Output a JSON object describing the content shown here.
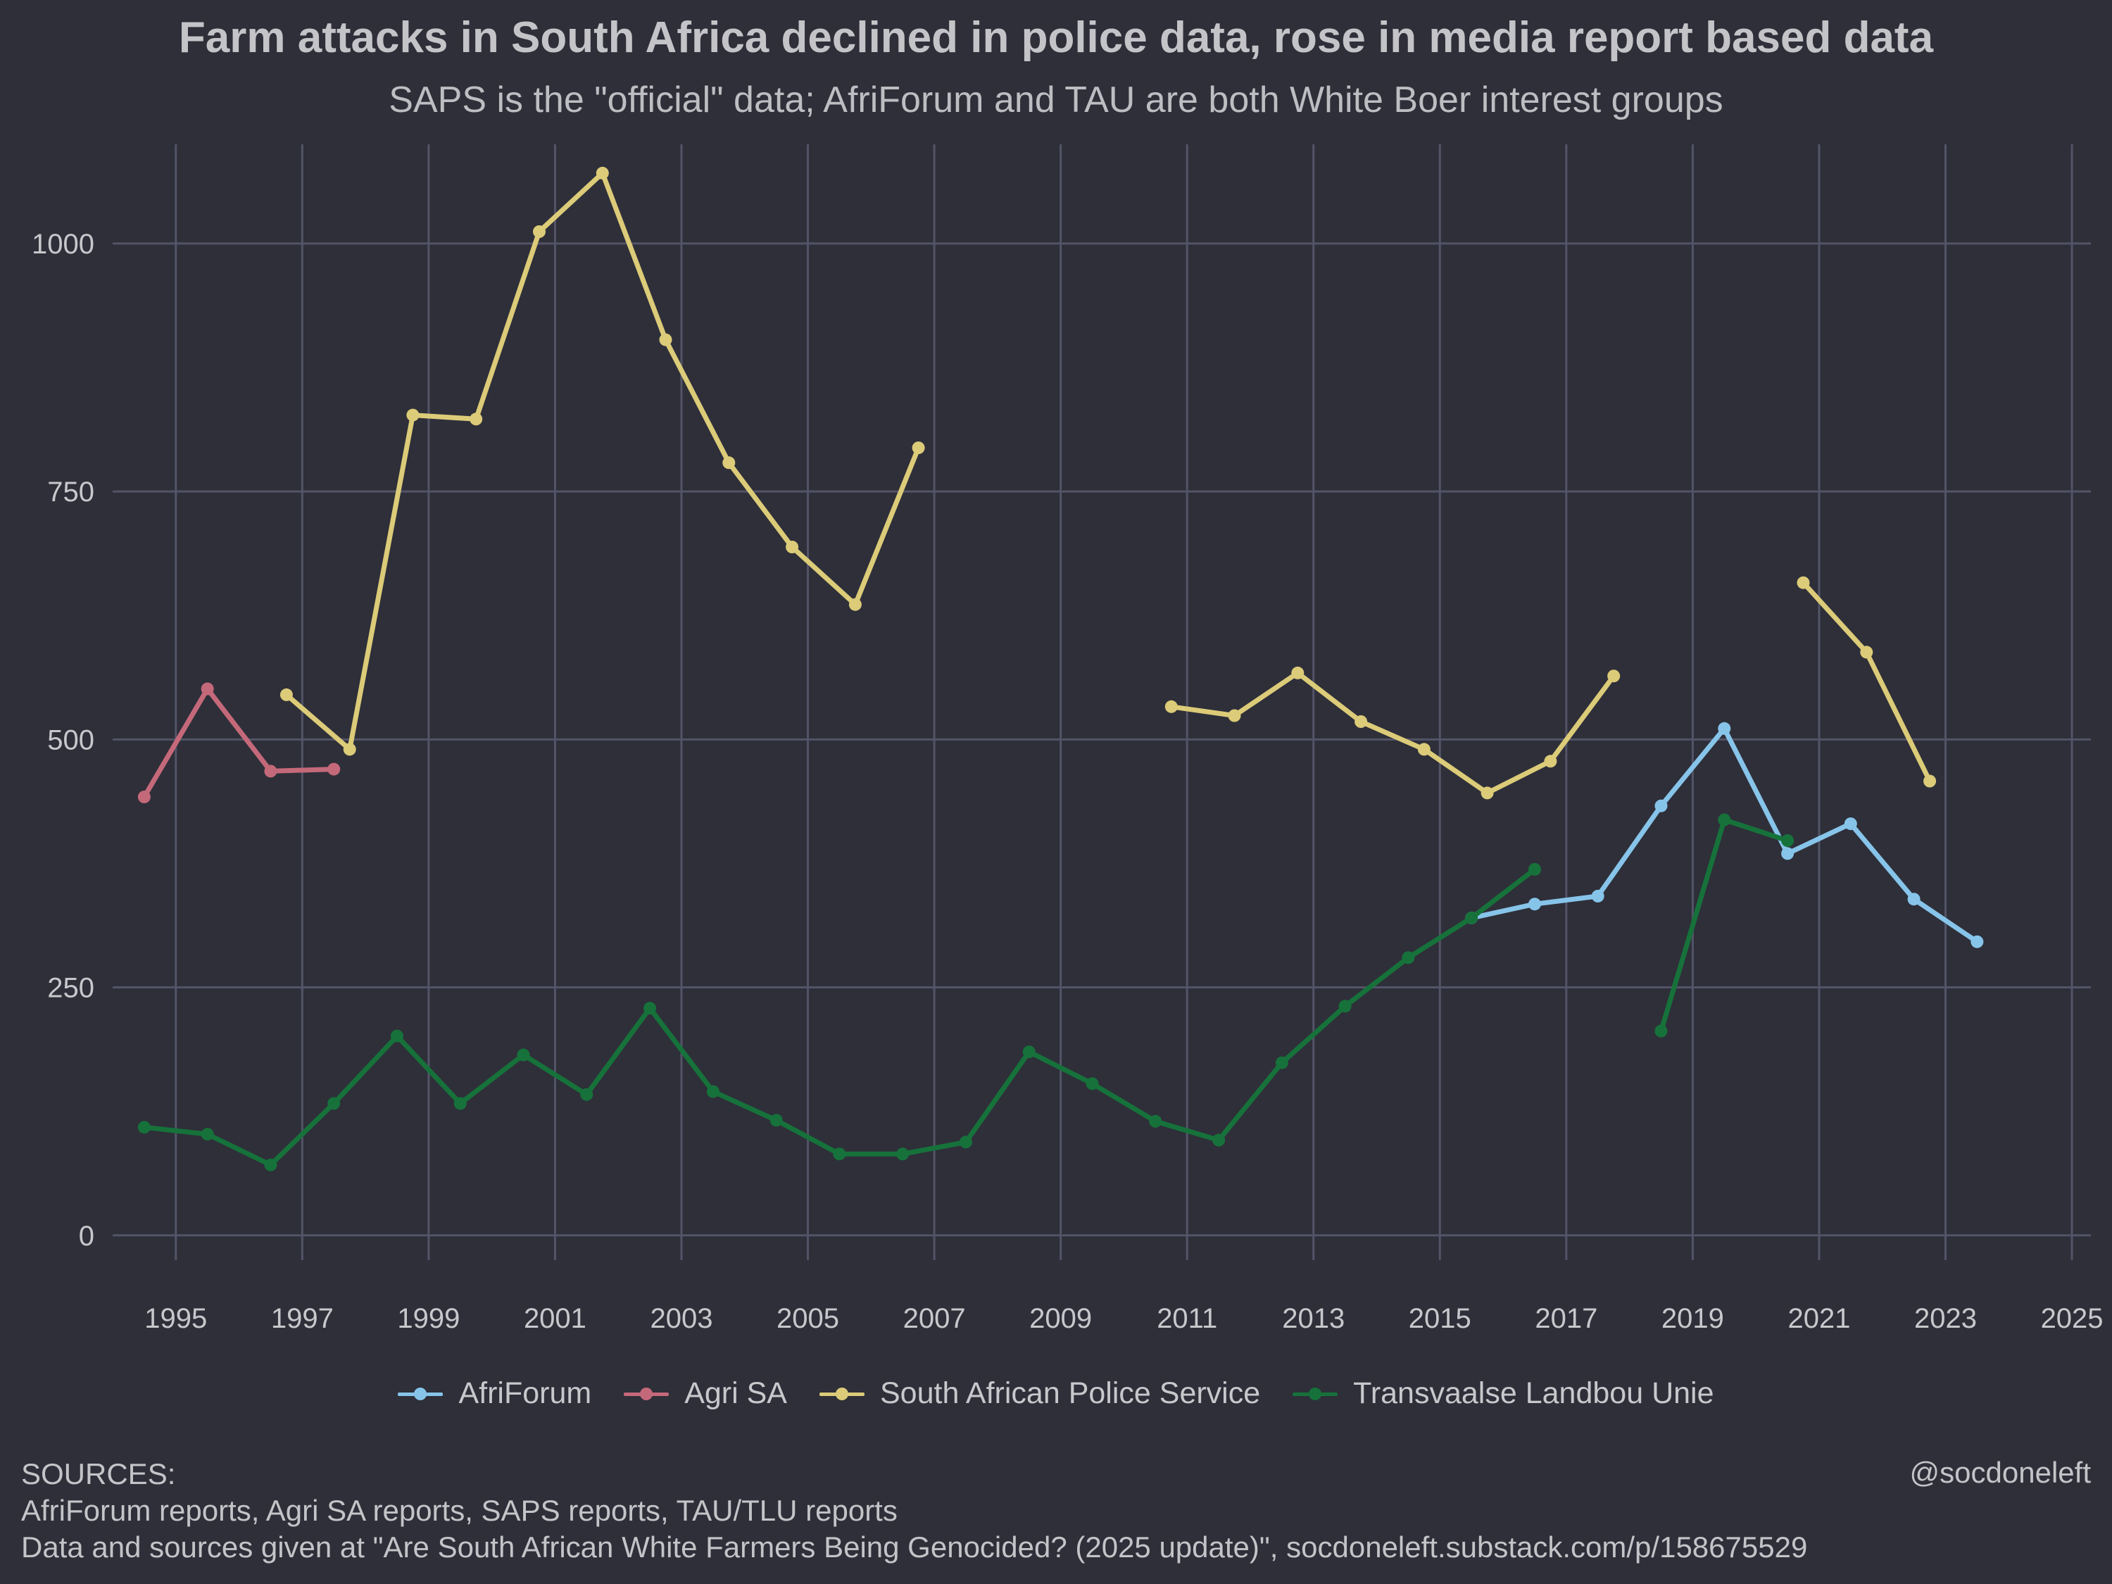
{
  "chart_data": {
    "type": "line",
    "title": "Farm attacks in South Africa declined in police data, rose in media report based data",
    "subtitle": "SAPS is the \"official\" data; AfriForum and TAU are both White Boer interest groups",
    "xlabel": "",
    "ylabel": "",
    "xlim": [
      1994,
      2025.3
    ],
    "ylim": [
      -25,
      1100
    ],
    "x_ticks": [
      1995,
      1997,
      1999,
      2001,
      2003,
      2005,
      2007,
      2009,
      2011,
      2013,
      2015,
      2017,
      2019,
      2021,
      2023,
      2025
    ],
    "y_ticks": [
      0,
      250,
      500,
      750,
      1000
    ],
    "grid": true,
    "legend_position": "bottom",
    "series": [
      {
        "name": "AfriForum",
        "color": "#87c4ea",
        "segments": [
          [
            [
              2015.5,
              320
            ],
            [
              2016.5,
              334
            ],
            [
              2017.5,
              342
            ],
            [
              2018.5,
              433
            ],
            [
              2019.5,
              511
            ],
            [
              2020.5,
              385
            ],
            [
              2021.5,
              415
            ],
            [
              2022.5,
              339
            ],
            [
              2023.5,
              296
            ]
          ]
        ]
      },
      {
        "name": "Agri SA",
        "color": "#c4697a",
        "segments": [
          [
            [
              1994.5,
              442
            ],
            [
              1995.5,
              551
            ],
            [
              1996.5,
              468
            ],
            [
              1997.5,
              470
            ]
          ]
        ]
      },
      {
        "name": "South African Police Service",
        "color": "#dccb78",
        "segments": [
          [
            [
              1996.75,
              545
            ],
            [
              1997.75,
              490
            ],
            [
              1998.75,
              827
            ],
            [
              1999.75,
              823
            ],
            [
              2000.75,
              1012
            ],
            [
              2001.75,
              1071
            ],
            [
              2002.75,
              903
            ],
            [
              2003.75,
              779
            ],
            [
              2004.75,
              694
            ],
            [
              2005.75,
              636
            ],
            [
              2006.75,
              794
            ]
          ],
          [
            [
              2010.75,
              533
            ],
            [
              2011.75,
              524
            ],
            [
              2012.75,
              567
            ],
            [
              2013.75,
              518
            ],
            [
              2014.75,
              490
            ],
            [
              2015.75,
              446
            ],
            [
              2016.75,
              478
            ],
            [
              2017.75,
              564
            ]
          ],
          [
            [
              2020.75,
              658
            ],
            [
              2021.75,
              588
            ],
            [
              2022.75,
              458
            ]
          ]
        ]
      },
      {
        "name": "Transvaalse Landbou Unie",
        "color": "#16723a",
        "segments": [
          [
            [
              1994.5,
              109
            ],
            [
              1995.5,
              102
            ],
            [
              1996.5,
              71
            ],
            [
              1997.5,
              133
            ],
            [
              1998.5,
              201
            ],
            [
              1999.5,
              133
            ],
            [
              2000.5,
              182
            ],
            [
              2001.5,
              142
            ],
            [
              2002.5,
              229
            ],
            [
              2003.5,
              145
            ],
            [
              2004.5,
              116
            ],
            [
              2005.5,
              82
            ],
            [
              2006.5,
              82
            ],
            [
              2007.5,
              94
            ],
            [
              2008.5,
              185
            ],
            [
              2009.5,
              153
            ],
            [
              2010.5,
              115
            ],
            [
              2011.5,
              96
            ],
            [
              2012.5,
              174
            ],
            [
              2013.5,
              231
            ],
            [
              2014.5,
              280
            ],
            [
              2015.5,
              320
            ],
            [
              2016.5,
              369
            ]
          ],
          [
            [
              2018.5,
              206
            ],
            [
              2019.5,
              419
            ],
            [
              2020.5,
              398
            ]
          ]
        ]
      }
    ]
  },
  "legend": {
    "items": [
      {
        "label": "AfriForum",
        "color": "#87c4ea"
      },
      {
        "label": "Agri SA",
        "color": "#c4697a"
      },
      {
        "label": "South African Police Service",
        "color": "#dccb78"
      },
      {
        "label": "Transvaalse Landbou Unie",
        "color": "#16723a"
      }
    ]
  },
  "footer": {
    "sources_heading": "SOURCES:",
    "sources_line1": "AfriForum reports, Agri SA reports, SAPS reports, TAU/TLU reports",
    "sources_line2": "Data and sources given at \"Are South African White Farmers Being Genocided? (2025 update)\", socdoneleft.substack.com/p/158675529",
    "handle": "@socdoneleft"
  },
  "colors": {
    "background": "#2e2f39",
    "grid": "#535468",
    "text": "#c8c8cc"
  }
}
